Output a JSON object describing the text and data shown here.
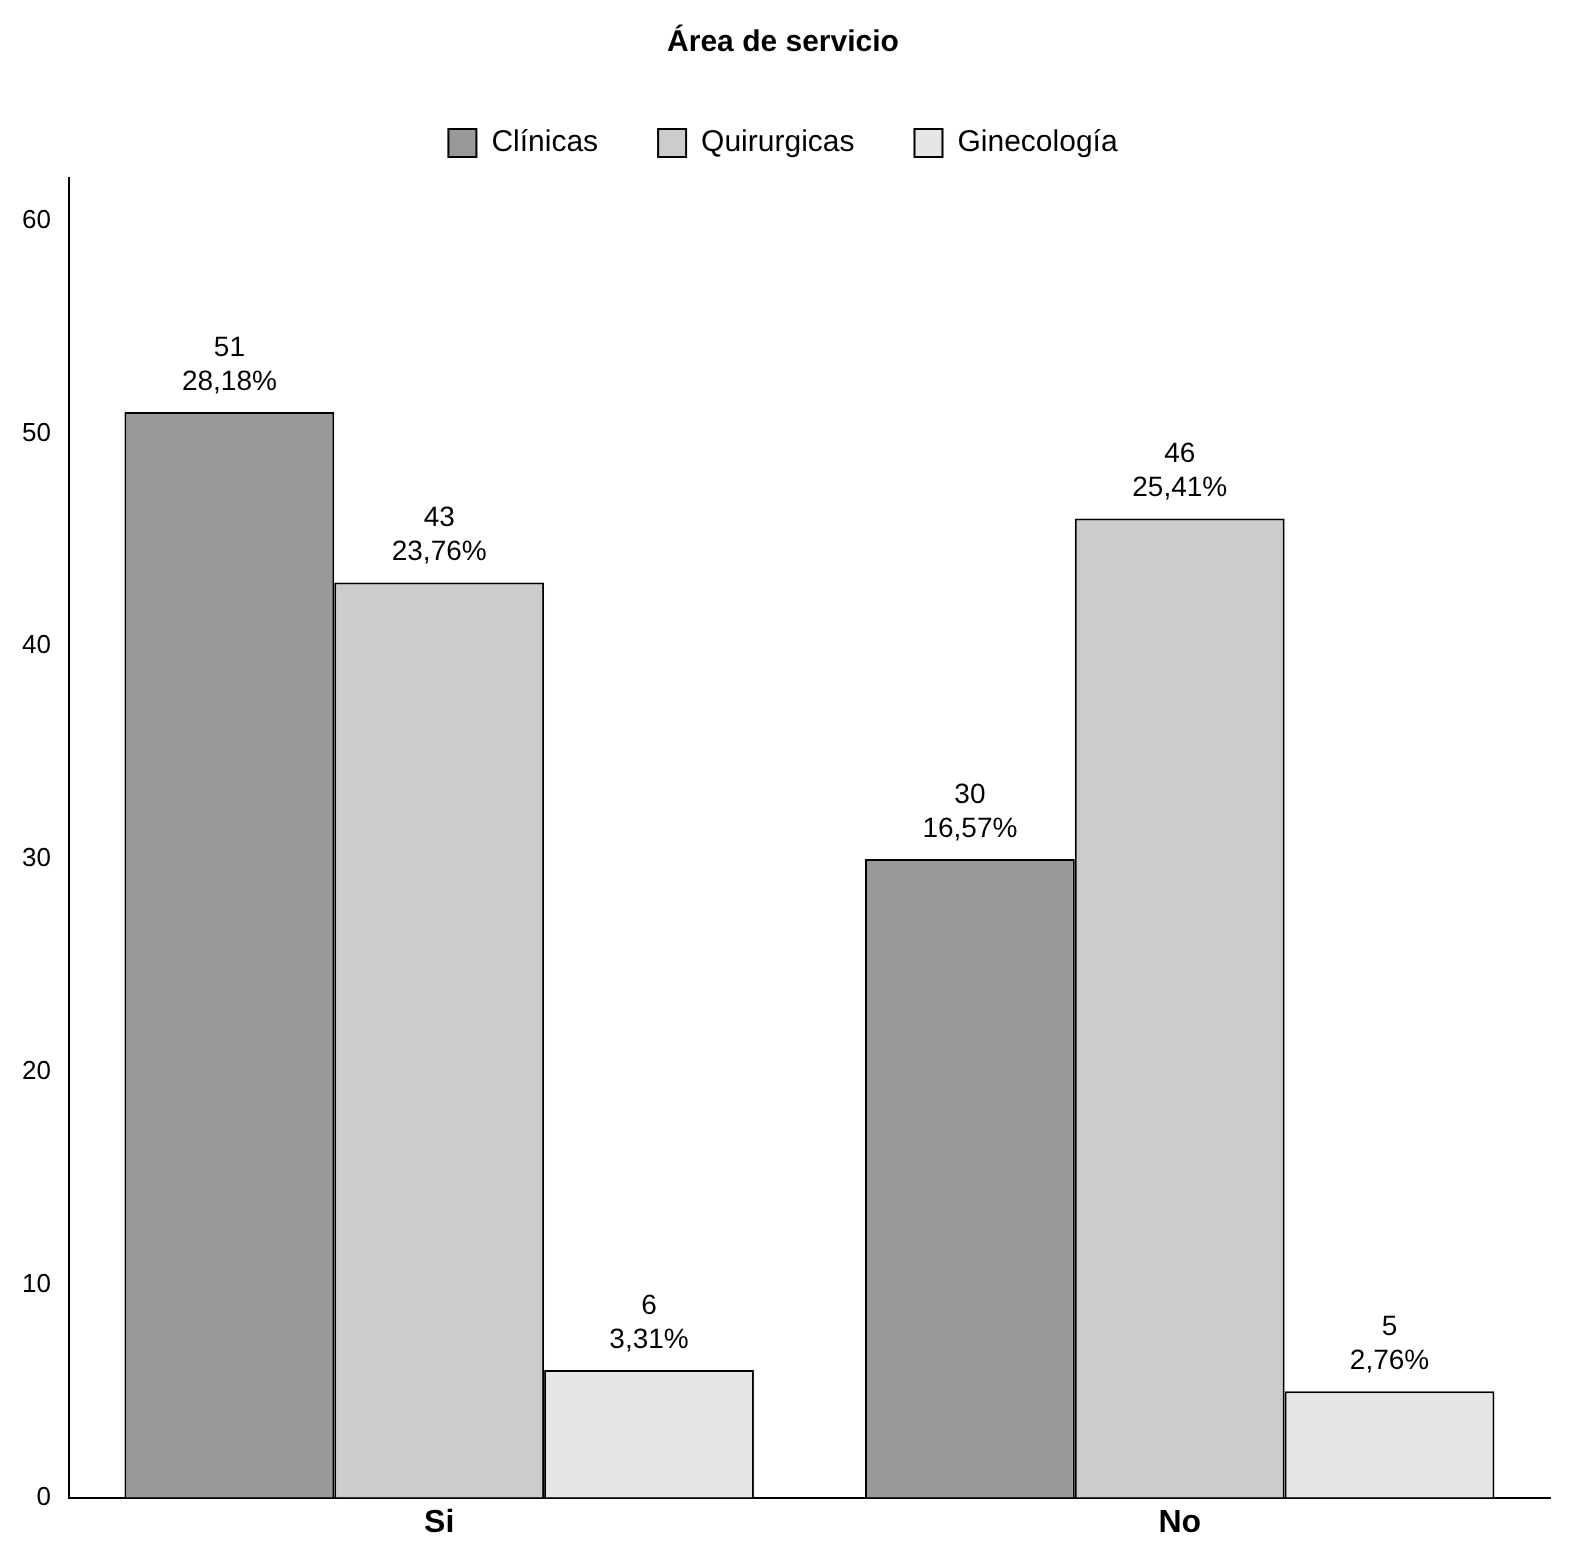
{
  "chart_data": {
    "type": "bar",
    "legend_title": "Área de servicio",
    "categories": [
      "Si",
      "No"
    ],
    "series": [
      {
        "name": "Clínicas",
        "color": "#999999",
        "values": [
          51,
          30
        ],
        "value_labels": [
          "51\n28,18%",
          "30\n16,57%"
        ]
      },
      {
        "name": "Quirurgicas",
        "color": "#cccccc",
        "values": [
          43,
          46
        ],
        "value_labels": [
          "43\n23,76%",
          "46\n25,41%"
        ]
      },
      {
        "name": "Ginecología",
        "color": "#e6e6e6",
        "values": [
          6,
          5
        ],
        "value_labels": [
          "6\n3,31%",
          "5\n2,76%"
        ]
      }
    ],
    "ylim": [
      0,
      62
    ],
    "yticks": [
      0,
      10,
      20,
      30,
      40,
      50,
      60
    ],
    "grid": false,
    "legend": "top"
  }
}
